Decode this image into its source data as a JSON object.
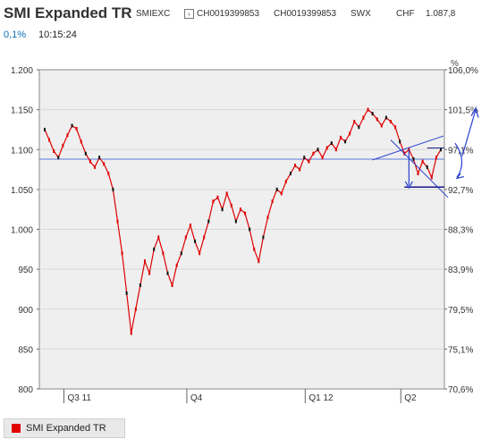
{
  "header": {
    "title": "SMI Expanded TR",
    "exchange": "SMIEXC",
    "isin_1": "CH0019399853",
    "isin_2": "CH0019399853",
    "venue": "SWX",
    "currency": "CHF",
    "last_price": "1.087,8",
    "change_pct": "0,1%",
    "time": "10:15:24",
    "info_icon": "small-box-icon"
  },
  "legend": {
    "label": "SMI Expanded TR",
    "color": "#e00000"
  },
  "chart_data": {
    "type": "line",
    "title": "SMI Expanded TR",
    "series_color": "#e00000",
    "x_ticks": [
      "Q3 11",
      "Q4",
      "Q1 12",
      "Q2"
    ],
    "y_left": {
      "ticks": [
        "1.200",
        "1.150",
        "1.100",
        "1.050",
        "1.000",
        "950",
        "900",
        "850",
        "800"
      ],
      "range": [
        800,
        1200
      ]
    },
    "y_right": {
      "unit": "%",
      "ticks": [
        "106,0%",
        "101,5%",
        "97,1%",
        "92,7%",
        "88,3%",
        "83,9%",
        "79,5%",
        "75,1%",
        "70,6%"
      ]
    },
    "reference_line": 1088,
    "series": [
      {
        "name": "SMI Expanded TR",
        "values": [
          1125,
          1112,
          1098,
          1090,
          1105,
          1118,
          1130,
          1126,
          1110,
          1095,
          1085,
          1078,
          1090,
          1082,
          1070,
          1050,
          1010,
          970,
          920,
          870,
          900,
          930,
          960,
          945,
          975,
          990,
          970,
          945,
          930,
          955,
          970,
          990,
          1005,
          985,
          970,
          990,
          1010,
          1035,
          1040,
          1025,
          1045,
          1030,
          1010,
          1025,
          1020,
          1000,
          975,
          960,
          990,
          1015,
          1035,
          1050,
          1045,
          1060,
          1070,
          1080,
          1075,
          1090,
          1085,
          1095,
          1100,
          1090,
          1102,
          1108,
          1100,
          1115,
          1110,
          1120,
          1135,
          1128,
          1140,
          1150,
          1145,
          1138,
          1130,
          1140,
          1135,
          1128,
          1110,
          1095,
          1100,
          1088,
          1070,
          1085,
          1078,
          1065,
          1090,
          1100
        ]
      }
    ]
  },
  "annotations": {
    "upper_trendline_start": 1087,
    "upper_trendline_end": 1117,
    "lower_trendline_start": 1112,
    "lower_trendline_end": 1040,
    "support_level": 1053,
    "resistance_level": 1102
  }
}
